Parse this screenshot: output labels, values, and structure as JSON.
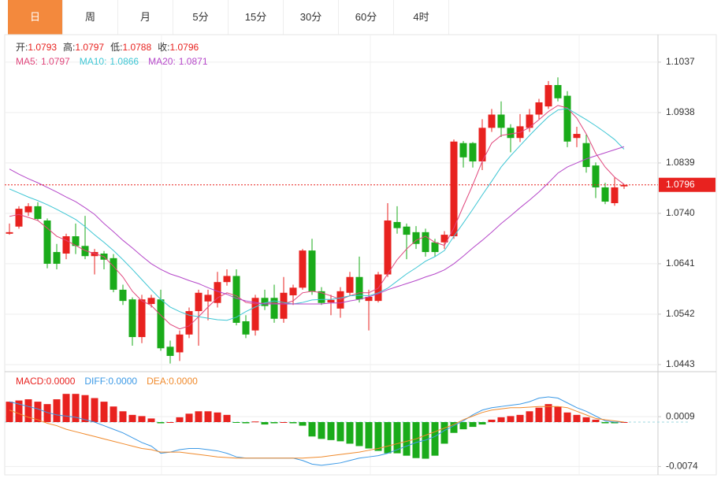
{
  "tabs": [
    "日",
    "周",
    "月",
    "5分",
    "15分",
    "30分",
    "60分",
    "4时"
  ],
  "active_tab": 0,
  "chart_data": [
    {
      "type": "candlestick",
      "ohlc_labels": [
        "开:",
        "高:",
        "低:",
        "收:"
      ],
      "open": [
        1.07,
        1.0714,
        1.0742,
        1.0754,
        1.0726,
        1.0664,
        1.0661,
        1.0695,
        1.0676,
        1.0656,
        1.0661,
        1.0652,
        1.059,
        1.0571,
        1.0497,
        1.0562,
        1.0571,
        1.0478,
        1.0467,
        1.0502,
        1.0548,
        1.0567,
        1.0564,
        1.0605,
        1.0617,
        1.0528,
        1.051,
        1.0574,
        1.0574,
        1.0533,
        1.0579,
        1.0594,
        1.0667,
        1.0587,
        1.0565,
        1.0553,
        1.0584,
        1.0615,
        1.0568,
        1.0568,
        1.062,
        1.0723,
        1.0714,
        1.0703,
        1.0703,
        1.0683,
        1.0683,
        1.0695,
        1.0878,
        1.0878,
        1.0842,
        1.0908,
        1.0934,
        1.0908,
        1.0888,
        1.0908,
        1.0934,
        1.095,
        1.0992,
        1.0971,
        1.0888,
        1.0878,
        1.0834,
        1.0791,
        1.076,
        1.0793
      ],
      "high": [
        1.072,
        1.0754,
        1.076,
        1.0762,
        1.073,
        1.068,
        1.07,
        1.072,
        1.0735,
        1.067,
        1.0666,
        1.066,
        1.06,
        1.0575,
        1.058,
        1.058,
        1.059,
        1.049,
        1.051,
        1.0555,
        1.059,
        1.059,
        1.0625,
        1.063,
        1.063,
        1.054,
        1.058,
        1.059,
        1.06,
        1.0615,
        1.06,
        1.067,
        1.069,
        1.0595,
        1.058,
        1.0595,
        1.0625,
        1.0655,
        1.059,
        1.0625,
        1.076,
        1.0754,
        1.072,
        1.0715,
        1.071,
        1.069,
        1.0705,
        1.0885,
        1.0882,
        1.088,
        1.0925,
        1.0945,
        1.096,
        1.0915,
        1.0935,
        1.0945,
        1.0965,
        1.1,
        1.1007,
        1.098,
        1.091,
        1.0895,
        1.084,
        1.08,
        1.081,
        1.0797
      ],
      "low": [
        1.0698,
        1.071,
        1.0735,
        1.0726,
        1.0632,
        1.063,
        1.065,
        1.066,
        1.065,
        1.062,
        1.063,
        1.0585,
        1.056,
        1.048,
        1.0485,
        1.0555,
        1.047,
        1.0445,
        1.045,
        1.0495,
        1.048,
        1.053,
        1.0555,
        1.0598,
        1.052,
        1.0495,
        1.05,
        1.055,
        1.0525,
        1.0525,
        1.056,
        1.059,
        1.058,
        1.056,
        1.054,
        1.0535,
        1.0578,
        1.0565,
        1.051,
        1.0565,
        1.0615,
        1.07,
        1.065,
        1.067,
        1.0655,
        1.0655,
        1.067,
        1.069,
        1.083,
        1.083,
        1.0825,
        1.09,
        1.089,
        1.086,
        1.088,
        1.09,
        1.0925,
        1.0945,
        1.096,
        1.087,
        1.087,
        1.082,
        1.077,
        1.0758,
        1.0755,
        1.0788
      ],
      "close": [
        1.0703,
        1.0749,
        1.0754,
        1.0729,
        1.0641,
        1.0641,
        1.0695,
        1.0676,
        1.0656,
        1.0664,
        1.0649,
        1.059,
        1.0568,
        1.0497,
        1.0571,
        1.0574,
        1.0475,
        1.046,
        1.0502,
        1.0548,
        1.0584,
        1.058,
        1.0605,
        1.0617,
        1.0525,
        1.0502,
        1.0574,
        1.0558,
        1.0533,
        1.0584,
        1.0594,
        1.0667,
        1.0587,
        1.0564,
        1.057,
        1.0587,
        1.0615,
        1.0571,
        1.0576,
        1.062,
        1.0726,
        1.0711,
        1.0698,
        1.068,
        1.0664,
        1.0664,
        1.0698,
        1.0881,
        1.085,
        1.0842,
        1.0908,
        1.0934,
        1.0908,
        1.0888,
        1.0911,
        1.0934,
        1.0958,
        1.0992,
        1.0966,
        1.0881,
        1.0896,
        1.0831,
        1.0791,
        1.0763,
        1.0791,
        1.0796
      ],
      "up_color": "#e8221f",
      "down_color": "#1aab1a",
      "series": [
        {
          "name": "MA5:",
          "color": "#e0457b",
          "values": [
            1.0734,
            1.0738,
            1.0732,
            1.0726,
            1.0711,
            1.0695,
            1.0687,
            1.0677,
            1.0667,
            1.0661,
            1.0655,
            1.0636,
            1.0615,
            1.0587,
            1.0568,
            1.0559,
            1.054,
            1.0522,
            1.0513,
            1.0519,
            1.0537,
            1.0556,
            1.0574,
            1.0584,
            1.0578,
            1.0565,
            1.0562,
            1.0564,
            1.0564,
            1.0562,
            1.0568,
            1.0584,
            1.0587,
            1.0584,
            1.0578,
            1.0571,
            1.0578,
            1.0584,
            1.0584,
            1.0593,
            1.0621,
            1.0649,
            1.067,
            1.0687,
            1.0695,
            1.0683,
            1.0677,
            1.0711,
            1.0754,
            1.0796,
            1.0842,
            1.0878,
            1.0893,
            1.0896,
            1.0899,
            1.0909,
            1.0924,
            1.094,
            1.0952,
            1.0947,
            1.0927,
            1.0896,
            1.0858,
            1.0831,
            1.0811,
            1.0797
          ]
        },
        {
          "name": "MA10:",
          "color": "#3ec6d4",
          "values": [
            1.0788,
            1.078,
            1.0772,
            1.0765,
            1.0757,
            1.0748,
            1.0738,
            1.0728,
            1.0714,
            1.0698,
            1.0683,
            1.0667,
            1.0649,
            1.063,
            1.061,
            1.059,
            1.0571,
            1.0556,
            1.0547,
            1.054,
            1.0537,
            1.0534,
            1.0531,
            1.053,
            1.0536,
            1.0547,
            1.0556,
            1.0564,
            1.0568,
            1.0565,
            1.0562,
            1.0565,
            1.057,
            1.0571,
            1.0571,
            1.0574,
            1.0578,
            1.0579,
            1.0578,
            1.0584,
            1.0593,
            1.0607,
            1.0621,
            1.0633,
            1.0646,
            1.0655,
            1.0667,
            1.0695,
            1.0721,
            1.0748,
            1.0776,
            1.0803,
            1.0831,
            1.0853,
            1.0873,
            1.0893,
            1.0912,
            1.093,
            1.0943,
            1.0946,
            1.0935,
            1.0924,
            1.0912,
            1.0899,
            1.0885,
            1.0866
          ]
        },
        {
          "name": "MA20:",
          "color": "#b547c9",
          "values": [
            1.0827,
            1.0817,
            1.0808,
            1.08,
            1.0791,
            1.0782,
            1.0772,
            1.0763,
            1.0751,
            1.0738,
            1.072,
            1.0704,
            1.0687,
            1.0672,
            1.0656,
            1.0641,
            1.063,
            1.0621,
            1.0615,
            1.0608,
            1.0602,
            1.0594,
            1.0587,
            1.0581,
            1.0573,
            1.0568,
            1.0565,
            1.0562,
            1.0562,
            1.0562,
            1.0562,
            1.0562,
            1.0562,
            1.0562,
            1.0564,
            1.0564,
            1.0568,
            1.0571,
            1.0576,
            1.0582,
            1.059,
            1.0596,
            1.0602,
            1.0608,
            1.0615,
            1.0621,
            1.0629,
            1.0641,
            1.0656,
            1.0672,
            1.0687,
            1.0703,
            1.072,
            1.0735,
            1.0751,
            1.0766,
            1.0782,
            1.08,
            1.0819,
            1.0831,
            1.0839,
            1.0847,
            1.0853,
            1.0859,
            1.0865,
            1.0871
          ]
        }
      ],
      "ylim": [
        1.0429,
        1.1091
      ],
      "yticks": [
        1.1037,
        1.0938,
        1.0839,
        {
          "value": 1.074,
          "label": "1.0740"
        },
        1.0641,
        1.0542,
        1.0443
      ],
      "grid": true
    },
    {
      "type": "macd",
      "legend": [
        {
          "name": "MACD:",
          "label": "0.0000",
          "color": "#e8221f"
        },
        {
          "name": "DIFF:",
          "label": "0.0000",
          "color": "#3b99e6"
        },
        {
          "name": "DEA:",
          "label": "0.0000",
          "color": "#f08a2c"
        }
      ],
      "values": [
        0.0034,
        0.0036,
        0.0038,
        0.0034,
        0.003,
        0.0038,
        0.0047,
        0.0047,
        0.0045,
        0.004,
        0.0034,
        0.0026,
        0.0018,
        0.0012,
        0.001,
        0.0006,
        -0.0002,
        0.0,
        0.0008,
        0.0014,
        0.0018,
        0.0018,
        0.0016,
        0.0012,
        -0.0001,
        -0.0002,
        0.0001,
        -0.0004,
        -0.0002,
        0.0,
        -0.0002,
        -0.0006,
        -0.0024,
        -0.0028,
        -0.003,
        -0.0032,
        -0.0036,
        -0.004,
        -0.0044,
        -0.0048,
        -0.0052,
        -0.0052,
        -0.0056,
        -0.006,
        -0.0061,
        -0.0056,
        -0.0036,
        -0.0018,
        -0.0012,
        -0.0008,
        -0.0004,
        0.0004,
        0.0008,
        0.001,
        0.0012,
        0.0018,
        0.0024,
        0.003,
        0.0026,
        0.0016,
        0.0012,
        0.0008,
        0.0004,
        -0.0002,
        -0.0002,
        0.0
      ],
      "series": [
        {
          "name": "DIFF",
          "color": "#3b99e6",
          "values": [
            0.0034,
            0.003,
            0.0026,
            0.0022,
            0.0016,
            0.0012,
            0.001,
            0.0008,
            0.0004,
            0.0,
            -0.0006,
            -0.0012,
            -0.0018,
            -0.0026,
            -0.0034,
            -0.004,
            -0.0052,
            -0.005,
            -0.0046,
            -0.0044,
            -0.0044,
            -0.0046,
            -0.0048,
            -0.0052,
            -0.0058,
            -0.006,
            -0.006,
            -0.006,
            -0.006,
            -0.006,
            -0.006,
            -0.0064,
            -0.007,
            -0.0072,
            -0.007,
            -0.0068,
            -0.0064,
            -0.006,
            -0.0058,
            -0.0056,
            -0.0052,
            -0.0046,
            -0.004,
            -0.0034,
            -0.003,
            -0.0024,
            -0.0014,
            -0.0006,
            0.0002,
            0.0012,
            0.002,
            0.0024,
            0.0026,
            0.0028,
            0.003,
            0.0034,
            0.004,
            0.0042,
            0.004,
            0.0032,
            0.0024,
            0.0018,
            0.001,
            0.0002,
            0.0,
            0.0
          ]
        },
        {
          "name": "DEA",
          "color": "#f08a2c",
          "values": [
            0.002,
            0.0014,
            0.0008,
            0.0004,
            -0.0002,
            -0.0006,
            -0.0012,
            -0.0016,
            -0.002,
            -0.0024,
            -0.0028,
            -0.0032,
            -0.0036,
            -0.004,
            -0.0044,
            -0.0046,
            -0.005,
            -0.005,
            -0.005,
            -0.0052,
            -0.0054,
            -0.0056,
            -0.0058,
            -0.0059,
            -0.006,
            -0.006,
            -0.006,
            -0.006,
            -0.006,
            -0.006,
            -0.006,
            -0.006,
            -0.0059,
            -0.0058,
            -0.0056,
            -0.0054,
            -0.0052,
            -0.005,
            -0.0047,
            -0.0044,
            -0.004,
            -0.0036,
            -0.0032,
            -0.0028,
            -0.0022,
            -0.0016,
            -0.001,
            -0.0004,
            0.0004,
            0.001,
            0.0016,
            0.002,
            0.0022,
            0.0024,
            0.0024,
            0.0025,
            0.0026,
            0.0026,
            0.0026,
            0.0024,
            0.0018,
            0.0012,
            0.0006,
            0.0004,
            0.0002,
            0.0
          ]
        }
      ],
      "up_color": "#e8221f",
      "down_color": "#1aab1a",
      "ylim": [
        -0.0084,
        0.0084
      ],
      "yticks": [
        0.0009,
        -0.0074
      ]
    }
  ]
}
